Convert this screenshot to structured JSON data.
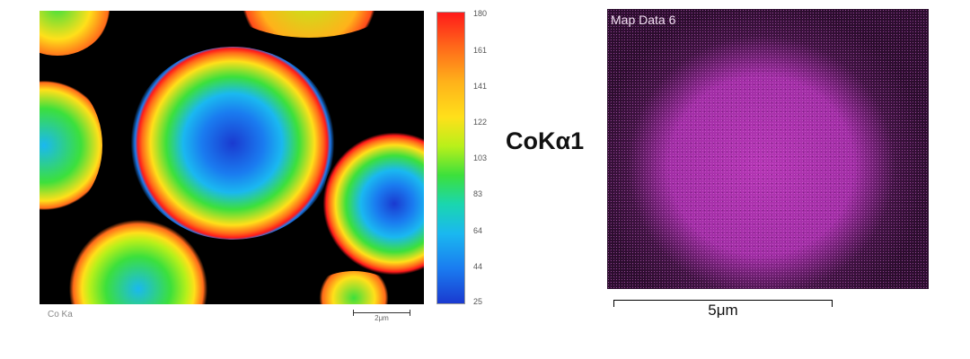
{
  "left_panel": {
    "element_label": "Co Ka",
    "scale_bar": "2μm"
  },
  "colorbar": {
    "ticks": [
      "180",
      "161",
      "141",
      "122",
      "103",
      "83",
      "64",
      "44",
      "25"
    ]
  },
  "center_label": "CoKα1",
  "right_panel": {
    "title": "Map Data 6",
    "scale_bar": "5μm",
    "color": "#a32aa8"
  }
}
